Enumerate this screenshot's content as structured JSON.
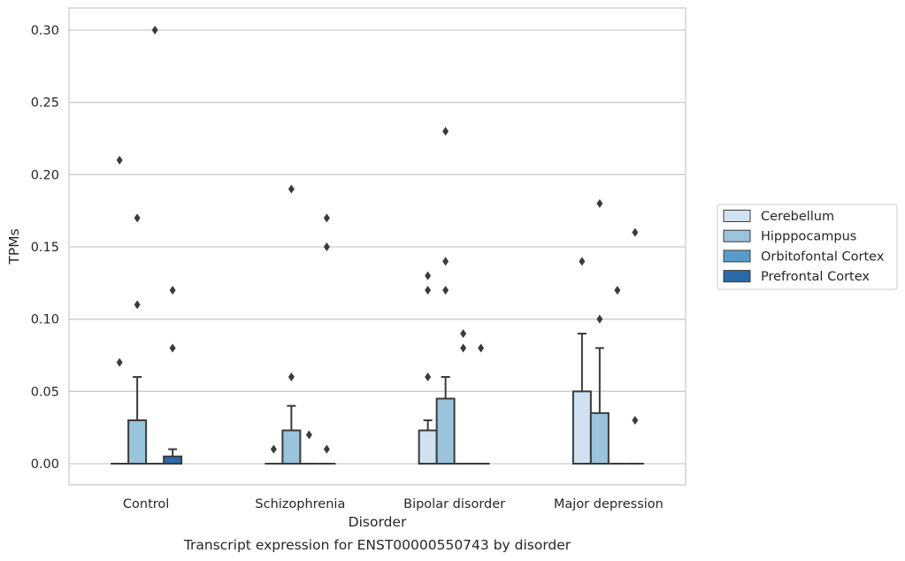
{
  "chart_data": {
    "type": "box",
    "caption": "Transcript expression for ENST00000550743 by disorder",
    "xlabel": "Disorder",
    "ylabel": "TPMs",
    "ylim": [
      -0.015,
      0.315
    ],
    "yticks": [
      0.0,
      0.05,
      0.1,
      0.15,
      0.2,
      0.25,
      0.3
    ],
    "ytick_labels": [
      "0.00",
      "0.05",
      "0.10",
      "0.15",
      "0.20",
      "0.25",
      "0.30"
    ],
    "grid": "horizontal",
    "legend_position": "outside-right",
    "categories": [
      "Control",
      "Schizophrenia",
      "Bipolar disorder",
      "Major depression"
    ],
    "series": [
      {
        "name": "Cerebellum",
        "color": "#d0e1f2",
        "boxes": [
          {
            "q1": 0,
            "median": 0,
            "q3": 0,
            "whislo": 0,
            "whishi": 0,
            "fliers": [
              0.07,
              0.21
            ]
          },
          {
            "q1": 0,
            "median": 0,
            "q3": 0,
            "whislo": 0,
            "whishi": 0,
            "fliers": [
              0.01
            ]
          },
          {
            "q1": 0,
            "median": 0,
            "q3": 0.023,
            "whislo": 0,
            "whishi": 0.03,
            "fliers": [
              0.06,
              0.12,
              0.13
            ]
          },
          {
            "q1": 0,
            "median": 0,
            "q3": 0.05,
            "whislo": 0,
            "whishi": 0.09,
            "fliers": [
              0.14
            ]
          }
        ]
      },
      {
        "name": "Hipppocampus",
        "color": "#9ac3dc",
        "boxes": [
          {
            "q1": 0,
            "median": 0,
            "q3": 0.03,
            "whislo": 0,
            "whishi": 0.06,
            "fliers": [
              0.11,
              0.17
            ]
          },
          {
            "q1": 0,
            "median": 0,
            "q3": 0.023,
            "whislo": 0,
            "whishi": 0.04,
            "fliers": [
              0.06,
              0.19
            ]
          },
          {
            "q1": 0,
            "median": 0,
            "q3": 0.045,
            "whislo": 0,
            "whishi": 0.06,
            "fliers": [
              0.12,
              0.14,
              0.23
            ]
          },
          {
            "q1": 0,
            "median": 0,
            "q3": 0.035,
            "whislo": 0,
            "whishi": 0.08,
            "fliers": [
              0.1,
              0.18
            ]
          }
        ]
      },
      {
        "name": "Orbitofontal Cortex",
        "color": "#5a9cc9",
        "boxes": [
          {
            "q1": 0,
            "median": 0,
            "q3": 0,
            "whislo": 0,
            "whishi": 0,
            "fliers": [
              0.3
            ]
          },
          {
            "q1": 0,
            "median": 0,
            "q3": 0,
            "whislo": 0,
            "whishi": 0,
            "fliers": [
              0.02
            ]
          },
          {
            "q1": 0,
            "median": 0,
            "q3": 0,
            "whislo": 0,
            "whishi": 0,
            "fliers": [
              0.08,
              0.09
            ]
          },
          {
            "q1": 0,
            "median": 0,
            "q3": 0,
            "whislo": 0,
            "whishi": 0,
            "fliers": [
              0.12
            ]
          }
        ]
      },
      {
        "name": "Prefrontal Cortex",
        "color": "#2b6aa9",
        "boxes": [
          {
            "q1": 0,
            "median": 0,
            "q3": 0.005,
            "whislo": 0,
            "whishi": 0.01,
            "fliers": [
              0.08,
              0.12
            ]
          },
          {
            "q1": 0,
            "median": 0,
            "q3": 0,
            "whislo": 0,
            "whishi": 0,
            "fliers": [
              0.01,
              0.15,
              0.17
            ]
          },
          {
            "q1": 0,
            "median": 0,
            "q3": 0,
            "whislo": 0,
            "whishi": 0,
            "fliers": [
              0.08
            ]
          },
          {
            "q1": 0,
            "median": 0,
            "q3": 0,
            "whislo": 0,
            "whishi": 0,
            "fliers": [
              0.03,
              0.16
            ]
          }
        ]
      }
    ]
  }
}
